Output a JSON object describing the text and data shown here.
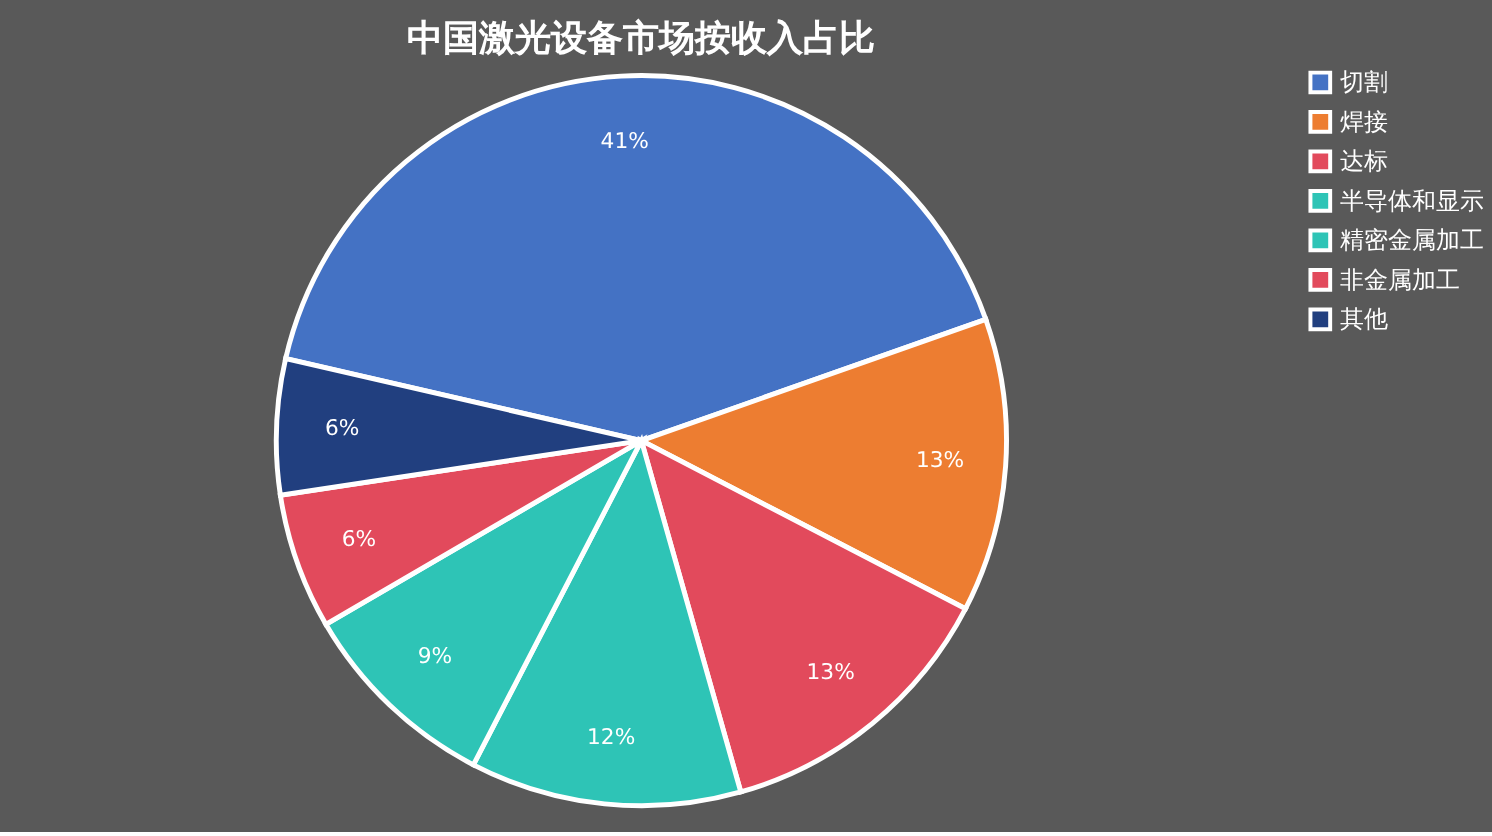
{
  "chart_data": {
    "type": "pie",
    "title": "中国激光设备市场按收入占比",
    "categories": [
      "切割",
      "焊接",
      "达标",
      "半导体和显示",
      "精密金属加工",
      "非金属加工",
      "其他"
    ],
    "values": [
      41,
      13,
      13,
      12,
      9,
      6,
      6
    ],
    "value_labels": [
      "41%",
      "13%",
      "13%",
      "12%",
      "9%",
      "6%",
      "6%"
    ],
    "colors": [
      "#4472c4",
      "#ed7d31",
      "#e24a5c",
      "#2ec4b6",
      "#2ec4b6",
      "#e24a5c",
      "#213f7f"
    ],
    "legend": "right"
  }
}
